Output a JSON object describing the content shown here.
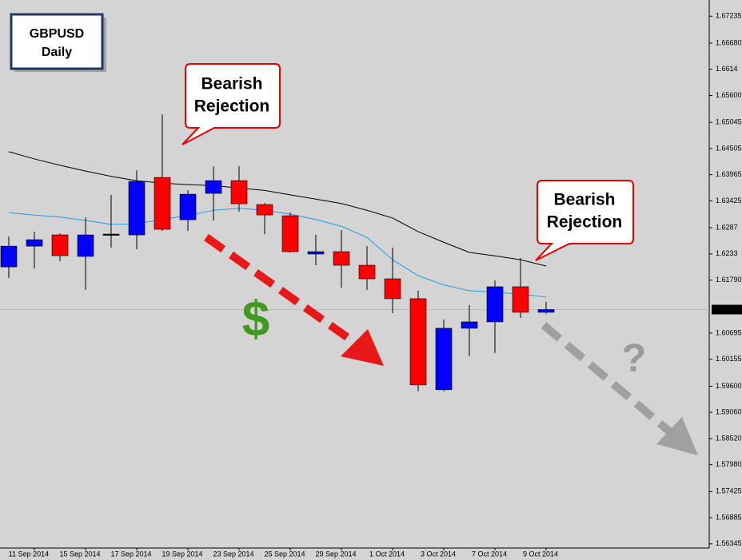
{
  "chart_data": {
    "type": "candlestick",
    "title": "GBPUSD",
    "subtitle": "Daily",
    "categories": [
      null,
      "11 Sep 2014",
      null,
      "15 Sep 2014",
      null,
      "17 Sep 2014",
      null,
      "19 Sep 2014",
      null,
      "23 Sep 2014",
      null,
      "25 Sep 2014",
      null,
      "29 Sep 2014",
      null,
      "1 Oct 2014",
      null,
      "3 Oct 2014",
      null,
      "7 Oct 2014",
      null,
      "9 Oct 2014"
    ],
    "open": [
      1.62062,
      1.6249,
      1.62722,
      1.62278,
      1.62739,
      1.62722,
      1.63908,
      1.63035,
      1.63579,
      1.63842,
      1.63348,
      1.63117,
      1.62327,
      1.62376,
      1.62096,
      1.61816,
      1.61405,
      1.59527,
      1.60795,
      1.60927,
      1.61652,
      1.61125
    ],
    "high": [
      1.62688,
      1.62788,
      1.62755,
      1.63085,
      1.63546,
      1.64056,
      1.65209,
      1.63645,
      1.64139,
      1.64139,
      1.63381,
      1.63183,
      1.62722,
      1.62821,
      1.6249,
      1.62459,
      1.61569,
      1.60976,
      1.61273,
      1.61783,
      1.62245,
      1.61339
    ],
    "low": [
      1.61831,
      1.6203,
      1.62179,
      1.61586,
      1.62459,
      1.62426,
      1.62805,
      1.62805,
      1.63019,
      1.632,
      1.62739,
      1.6236,
      1.62096,
      1.61635,
      1.61586,
      1.61108,
      1.59494,
      1.59494,
      1.60219,
      1.60285,
      1.61009,
      1.61092
    ],
    "close": [
      1.6249,
      1.62623,
      1.62294,
      1.62722,
      1.62739,
      1.63826,
      1.62838,
      1.63562,
      1.63842,
      1.63365,
      1.63134,
      1.62376,
      1.62376,
      1.62096,
      1.61816,
      1.61405,
      1.59626,
      1.60795,
      1.60927,
      1.61652,
      1.61125,
      1.61181
    ],
    "up_color": "#0000ff",
    "down_color": "#ff0000",
    "doji_color": "#000000",
    "series": [
      {
        "name": "MA slow",
        "color": "#000000",
        "values": [
          1.6444,
          1.6429,
          1.6416,
          1.6404,
          1.6393,
          1.6384,
          1.6379,
          1.6376,
          1.6374,
          1.6369,
          1.6364,
          1.6355,
          1.6346,
          1.6337,
          1.6323,
          1.6307,
          1.6279,
          1.6257,
          1.6236,
          1.6229,
          1.6221,
          1.6208
        ]
      },
      {
        "name": "MA fast",
        "color": "#1e9ee8",
        "values": [
          1.6318,
          1.6313,
          1.6309,
          1.6302,
          1.6294,
          1.6295,
          1.6304,
          1.6312,
          1.6323,
          1.6327,
          1.6323,
          1.6315,
          1.6304,
          1.629,
          1.6267,
          1.6221,
          1.6188,
          1.6169,
          1.6157,
          1.6154,
          1.615,
          1.6144
        ]
      }
    ],
    "current_price": 1.61181,
    "ylim": [
      1.5626,
      1.6757
    ],
    "yticks": [
      1.67235,
      {
        "value": 1.6668,
        "label": "1.66680"
      },
      1.6614,
      {
        "value": 1.656,
        "label": "1.65600"
      },
      1.65045,
      1.64505,
      1.63965,
      1.63425,
      1.6287,
      1.6233,
      {
        "value": 1.6179,
        "label": "1.61790"
      },
      1.60695,
      1.60155,
      {
        "value": 1.596,
        "label": "1.59600"
      },
      {
        "value": 1.5906,
        "label": "1.59060"
      },
      {
        "value": 1.5852,
        "label": "1.58520"
      },
      {
        "value": 1.5798,
        "label": "1.57980"
      },
      1.57425,
      1.56885,
      1.56345
    ],
    "annotations": [
      [
        "Bearish",
        "Rejection"
      ],
      [
        "Bearish",
        "Rejection"
      ],
      "$",
      "?"
    ]
  }
}
